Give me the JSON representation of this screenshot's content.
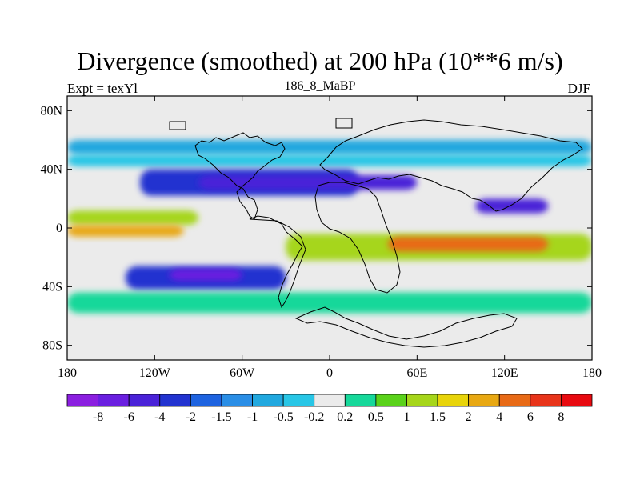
{
  "figure": {
    "title": "Divergence (smoothed) at 200 hPa (10**6 m/s)",
    "left_label": "Expt = texYl",
    "center_label": "186_8_MaBP",
    "right_label": "DJF"
  },
  "map": {
    "projection": "cylindrical-equidistant",
    "lon_range": [
      -180,
      180
    ],
    "lat_range": [
      -90,
      90
    ],
    "lon_ticks": [
      {
        "value": -180,
        "label": "180"
      },
      {
        "value": -120,
        "label": "120W"
      },
      {
        "value": -60,
        "label": "60W"
      },
      {
        "value": 0,
        "label": "0"
      },
      {
        "value": 60,
        "label": "60E"
      },
      {
        "value": 120,
        "label": "120E"
      },
      {
        "value": 180,
        "label": "180"
      }
    ],
    "lat_ticks": [
      {
        "value": 80,
        "label": "80N"
      },
      {
        "value": 40,
        "label": "40N"
      },
      {
        "value": 0,
        "label": "0"
      },
      {
        "value": -40,
        "label": "40S"
      },
      {
        "value": -80,
        "label": "80S"
      }
    ],
    "fields": [
      {
        "lon": [
          -180,
          180
        ],
        "lat": [
          60,
          50
        ],
        "level": 6
      },
      {
        "lon": [
          -180,
          180
        ],
        "lat": [
          50,
          42
        ],
        "level": 7
      },
      {
        "lon": [
          -130,
          20
        ],
        "lat": [
          40,
          22
        ],
        "level": 3
      },
      {
        "lon": [
          -90,
          60
        ],
        "lat": [
          36,
          26
        ],
        "level": 2
      },
      {
        "lon": [
          100,
          150
        ],
        "lat": [
          20,
          10
        ],
        "level": 2
      },
      {
        "lon": [
          -180,
          -90
        ],
        "lat": [
          12,
          2
        ],
        "level": 11
      },
      {
        "lon": [
          -180,
          -100
        ],
        "lat": [
          2,
          -6
        ],
        "level": 13
      },
      {
        "lon": [
          -30,
          180
        ],
        "lat": [
          -4,
          -22
        ],
        "level": 11
      },
      {
        "lon": [
          40,
          150
        ],
        "lat": [
          -6,
          -16
        ],
        "level": 14
      },
      {
        "lon": [
          -140,
          -30
        ],
        "lat": [
          -26,
          -42
        ],
        "level": 3
      },
      {
        "lon": [
          -110,
          -60
        ],
        "lat": [
          -28,
          -36
        ],
        "level": 1
      },
      {
        "lon": [
          -180,
          180
        ],
        "lat": [
          -44,
          -58
        ],
        "level": 9
      }
    ]
  },
  "colorbar": {
    "colors": [
      "#8b1fe0",
      "#6a1fe0",
      "#4a22d8",
      "#2233d0",
      "#1e63e0",
      "#2a8ee6",
      "#21a8df",
      "#28c6e6",
      "#ebebeb",
      "#16d89a",
      "#5ad21a",
      "#a6d61a",
      "#e8d40a",
      "#e8a812",
      "#e86a16",
      "#e8341a",
      "#e80a10"
    ],
    "labels": [
      "-8",
      "-6",
      "-4",
      "-2",
      "-1.5",
      "-1",
      "-0.5",
      "-0.2",
      "0.2",
      "0.5",
      "1",
      "1.5",
      "2",
      "4",
      "6",
      "8"
    ]
  }
}
